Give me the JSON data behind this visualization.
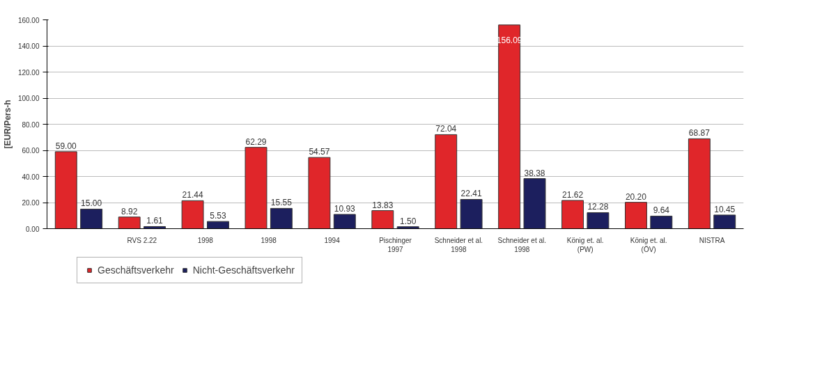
{
  "chart_data": {
    "type": "bar",
    "ylabel": "[EUR/Pers-h",
    "categories": [
      null,
      "RVS 2.22",
      "1998",
      "1998",
      "1994",
      "Pischinger\n1997",
      "Schneider et al.\n1998",
      "Schneider et al.\n1998",
      "König et. al.\n(PW)",
      "König et. al.\n(ÖV)",
      "NISTRA"
    ],
    "series": [
      {
        "name": "Geschäftsverkehr",
        "color": "#e0262a",
        "values": [
          59.0,
          8.92,
          21.44,
          62.29,
          54.57,
          13.83,
          72.04,
          156.09,
          21.62,
          20.2,
          68.87
        ],
        "value_labels": [
          "59.00",
          "8.92",
          "21.44",
          "62.29",
          "54.57",
          "13.83",
          "72.04",
          "156.09",
          "21.62",
          "20.20",
          "68.87"
        ]
      },
      {
        "name": "Nicht-Geschäftsverkehr",
        "color": "#1c1f5e",
        "values": [
          15.0,
          1.61,
          5.53,
          15.55,
          10.93,
          1.5,
          22.41,
          38.38,
          12.28,
          9.64,
          10.45
        ],
        "value_labels": [
          "15.00",
          "1.61",
          "5.53",
          "15.55",
          "10.93",
          "1.50",
          "22.41",
          "38.38",
          "12.28",
          "9.64",
          "10.45"
        ]
      }
    ],
    "ylim": [
      0,
      160
    ],
    "yticks": [
      {
        "value": 0,
        "label": "0.00"
      },
      {
        "value": 20,
        "label": "20.00"
      },
      {
        "value": 40,
        "label": "40.00"
      },
      {
        "value": 60,
        "label": "60.00"
      },
      {
        "value": 80,
        "label": "80.00"
      },
      {
        "value": 100,
        "label": "100.00"
      },
      {
        "value": 120,
        "label": "120.00"
      },
      {
        "value": 140,
        "label": "140.00"
      },
      {
        "value": 160,
        "label": "160.00"
      }
    ],
    "grid": "y",
    "legend": "bottom left"
  }
}
